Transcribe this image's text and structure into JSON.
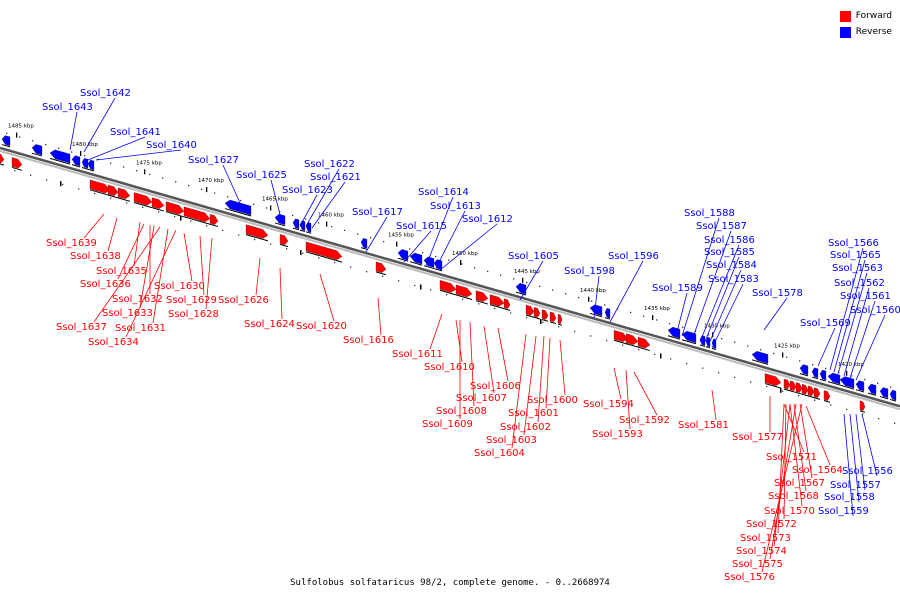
{
  "legend": {
    "forward_label": "Forward",
    "reverse_label": "Reverse",
    "forward_color": "#ff0000",
    "reverse_color": "#0000ff"
  },
  "caption": "Sulfolobus solfataricus 98/2, complete genome. - 0..2668974",
  "scale_labels": [
    "1485 kbp",
    "1480 kbp",
    "1475 kbp",
    "1470 kbp",
    "1465 kbp",
    "1460 kbp",
    "1455 kbp",
    "1450 kbp",
    "1445 kbp",
    "1440 kbp",
    "1435 kbp",
    "1430 kbp",
    "1425 kbp",
    "1420 kbp"
  ],
  "forward_genes": [
    "Ssol_1639",
    "Ssol_1638",
    "Ssol_1635",
    "Ssol_1636",
    "Ssol_1632",
    "Ssol_1633",
    "Ssol_1637",
    "Ssol_1631",
    "Ssol_1634",
    "Ssol_1630",
    "Ssol_1629",
    "Ssol_1628",
    "Ssol_1626",
    "Ssol_1624",
    "Ssol_1620",
    "Ssol_1616",
    "Ssol_1611",
    "Ssol_1610",
    "Ssol_1606",
    "Ssol_1607",
    "Ssol_1608",
    "Ssol_1609",
    "Ssol_1600",
    "Ssol_1601",
    "Ssol_1602",
    "Ssol_1603",
    "Ssol_1604",
    "Ssol_1594",
    "Ssol_1592",
    "Ssol_1593",
    "Ssol_1581",
    "Ssol_1577",
    "Ssol_1571",
    "Ssol_1564",
    "Ssol_1567",
    "Ssol_1568",
    "Ssol_1570",
    "Ssol_1572",
    "Ssol_1573",
    "Ssol_1574",
    "Ssol_1575",
    "Ssol_1576"
  ],
  "reverse_genes": [
    "Ssol_1642",
    "Ssol_1643",
    "Ssol_1641",
    "Ssol_1640",
    "Ssol_1627",
    "Ssol_1625",
    "Ssol_1622",
    "Ssol_1621",
    "Ssol_1623",
    "Ssol_1617",
    "Ssol_1614",
    "Ssol_1613",
    "Ssol_1615",
    "Ssol_1612",
    "Ssol_1605",
    "Ssol_1598",
    "Ssol_1596",
    "Ssol_1588",
    "Ssol_1587",
    "Ssol_1586",
    "Ssol_1585",
    "Ssol_1584",
    "Ssol_1583",
    "Ssol_1589",
    "Ssol_1578",
    "Ssol_1566",
    "Ssol_1565",
    "Ssol_1563",
    "Ssol_1562",
    "Ssol_1561",
    "Ssol_1569",
    "Ssol_1560",
    "Ssol_1556",
    "Ssol_1557",
    "Ssol_1558",
    "Ssol_1559"
  ]
}
